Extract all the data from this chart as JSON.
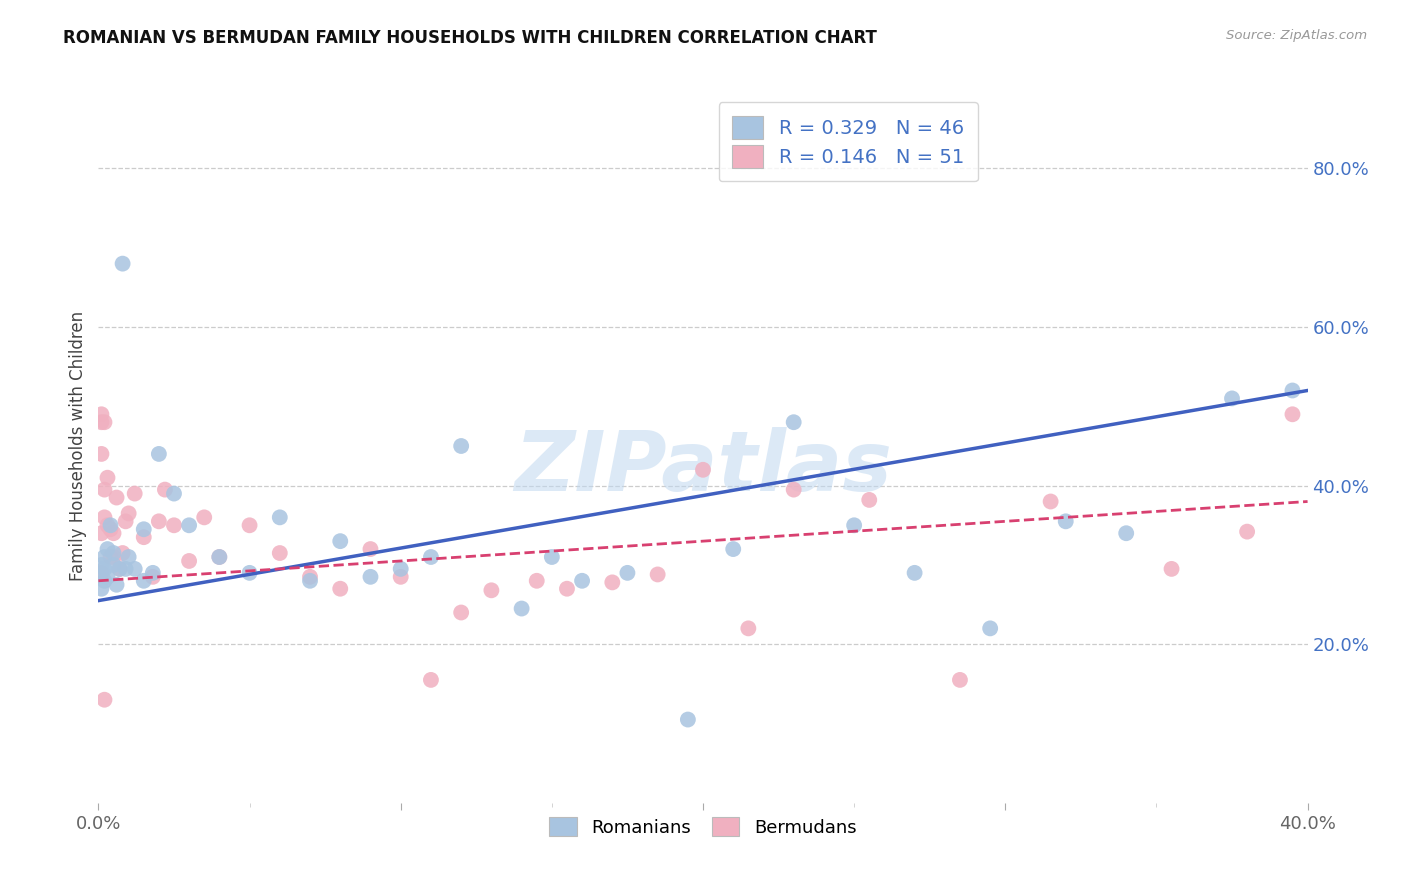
{
  "title": "ROMANIAN VS BERMUDAN FAMILY HOUSEHOLDS WITH CHILDREN CORRELATION CHART",
  "source": "Source: ZipAtlas.com",
  "ylabel": "Family Households with Children",
  "xlim": [
    0.0,
    0.4
  ],
  "ylim": [
    0.0,
    0.9
  ],
  "watermark": "ZIPatlas",
  "blue_scatter_color": "#a8c4e0",
  "pink_scatter_color": "#f0b0c0",
  "blue_line_color": "#4060c0",
  "pink_line_color": "#d84070",
  "romanian_x": [
    0.001,
    0.001,
    0.001,
    0.002,
    0.002,
    0.002,
    0.003,
    0.003,
    0.004,
    0.005,
    0.005,
    0.006,
    0.007,
    0.008,
    0.009,
    0.01,
    0.012,
    0.015,
    0.015,
    0.018,
    0.02,
    0.025,
    0.03,
    0.04,
    0.05,
    0.06,
    0.07,
    0.08,
    0.09,
    0.1,
    0.11,
    0.12,
    0.14,
    0.15,
    0.16,
    0.175,
    0.195,
    0.21,
    0.23,
    0.25,
    0.27,
    0.295,
    0.32,
    0.34,
    0.375,
    0.395
  ],
  "romanian_y": [
    0.27,
    0.29,
    0.3,
    0.28,
    0.31,
    0.295,
    0.32,
    0.285,
    0.35,
    0.3,
    0.315,
    0.275,
    0.295,
    0.68,
    0.295,
    0.31,
    0.295,
    0.345,
    0.28,
    0.29,
    0.44,
    0.39,
    0.35,
    0.31,
    0.29,
    0.36,
    0.28,
    0.33,
    0.285,
    0.295,
    0.31,
    0.45,
    0.245,
    0.31,
    0.28,
    0.29,
    0.105,
    0.32,
    0.48,
    0.35,
    0.29,
    0.22,
    0.355,
    0.34,
    0.51,
    0.52
  ],
  "bermudan_x": [
    0.001,
    0.001,
    0.001,
    0.001,
    0.002,
    0.002,
    0.002,
    0.003,
    0.003,
    0.004,
    0.004,
    0.005,
    0.005,
    0.006,
    0.007,
    0.008,
    0.009,
    0.01,
    0.012,
    0.015,
    0.018,
    0.02,
    0.022,
    0.025,
    0.03,
    0.035,
    0.04,
    0.05,
    0.06,
    0.07,
    0.08,
    0.09,
    0.1,
    0.11,
    0.12,
    0.13,
    0.145,
    0.155,
    0.17,
    0.185,
    0.2,
    0.215,
    0.23,
    0.255,
    0.285,
    0.315,
    0.355,
    0.38,
    0.395,
    0.001,
    0.002
  ],
  "bermudan_y": [
    0.49,
    0.44,
    0.34,
    0.29,
    0.395,
    0.36,
    0.13,
    0.41,
    0.35,
    0.345,
    0.31,
    0.34,
    0.31,
    0.385,
    0.295,
    0.315,
    0.355,
    0.365,
    0.39,
    0.335,
    0.285,
    0.355,
    0.395,
    0.35,
    0.305,
    0.36,
    0.31,
    0.35,
    0.315,
    0.285,
    0.27,
    0.32,
    0.285,
    0.155,
    0.24,
    0.268,
    0.28,
    0.27,
    0.278,
    0.288,
    0.42,
    0.22,
    0.395,
    0.382,
    0.155,
    0.38,
    0.295,
    0.342,
    0.49,
    0.48,
    0.48
  ]
}
